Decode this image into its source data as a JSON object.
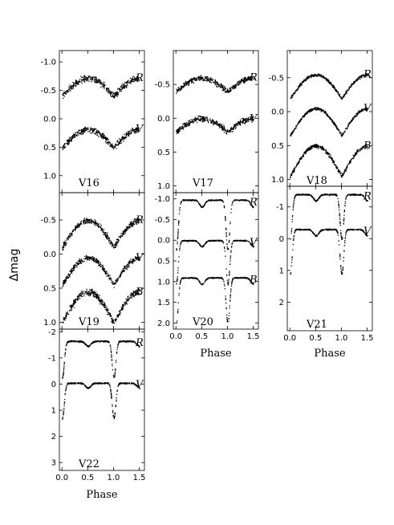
{
  "figure": {
    "ylabel": "Δmag",
    "xlabel": "Phase"
  },
  "chart_data": [
    {
      "type": "scatter",
      "name": "V16",
      "xlim": [
        -0.05,
        1.6
      ],
      "ylim": [
        1.3,
        -1.2
      ],
      "inverted_y": true,
      "yticks": [
        -1.0,
        -0.5,
        0.0,
        0.5,
        1.0
      ],
      "xticks": [],
      "series": [
        {
          "band": "R",
          "offset": -0.72,
          "amp": 0.32,
          "shape": "sinusoid",
          "scatter": 0.08
        },
        {
          "band": "V",
          "offset": 0.18,
          "amp": 0.32,
          "shape": "sinusoid",
          "scatter": 0.08
        }
      ]
    },
    {
      "type": "scatter",
      "name": "V17",
      "xlim": [
        -0.05,
        1.6
      ],
      "ylim": [
        1.1,
        -1.0
      ],
      "inverted_y": true,
      "yticks": [
        -0.5,
        0.0,
        0.5,
        1.0
      ],
      "xticks": [],
      "series": [
        {
          "band": "R",
          "offset": -0.6,
          "amp": 0.2,
          "shape": "sinusoid",
          "scatter": 0.06
        },
        {
          "band": "V",
          "offset": 0.0,
          "amp": 0.2,
          "shape": "sinusoid",
          "scatter": 0.06
        }
      ]
    },
    {
      "type": "scatter",
      "name": "V18",
      "xlim": [
        -0.05,
        1.6
      ],
      "ylim": [
        1.1,
        -0.9
      ],
      "inverted_y": true,
      "yticks": [
        -0.5,
        0.0,
        0.5,
        1.0
      ],
      "xticks": [],
      "series": [
        {
          "band": "R",
          "offset": -0.55,
          "amp": 0.35,
          "shape": "sinusoid",
          "scatter": 0.03
        },
        {
          "band": "V",
          "offset": -0.05,
          "amp": 0.4,
          "shape": "sinusoid",
          "scatter": 0.03
        },
        {
          "band": "B",
          "offset": 0.5,
          "amp": 0.45,
          "shape": "sinusoid",
          "scatter": 0.04
        }
      ]
    },
    {
      "type": "scatter",
      "name": "V19",
      "xlim": [
        -0.05,
        1.6
      ],
      "ylim": [
        1.1,
        -0.9
      ],
      "inverted_y": true,
      "yticks": [
        -0.5,
        0.0,
        0.5,
        1.0
      ],
      "xticks": [],
      "series": [
        {
          "band": "R",
          "offset": -0.5,
          "amp": 0.4,
          "shape": "sinusoid",
          "scatter": 0.06
        },
        {
          "band": "V",
          "offset": 0.05,
          "amp": 0.4,
          "shape": "sinusoid",
          "scatter": 0.06
        },
        {
          "band": "B",
          "offset": 0.55,
          "amp": 0.45,
          "shape": "sinusoid",
          "scatter": 0.07
        }
      ]
    },
    {
      "type": "scatter",
      "name": "V20",
      "xlim": [
        -0.05,
        1.6
      ],
      "ylim": [
        2.15,
        -1.15
      ],
      "inverted_y": true,
      "yticks": [
        -1.0,
        -0.5,
        0.0,
        0.5,
        1.0,
        1.5,
        2.0
      ],
      "xticks": [
        0.0,
        0.5,
        1.0,
        1.5
      ],
      "series": [
        {
          "band": "R",
          "offset": -0.98,
          "amp": 1.2,
          "shape": "eclipsing",
          "scatter": 0.02
        },
        {
          "band": "V",
          "offset": 0.0,
          "amp": 1.05,
          "shape": "eclipsing",
          "scatter": 0.02
        },
        {
          "band": "B",
          "offset": 0.9,
          "amp": 1.1,
          "shape": "eclipsing",
          "scatter": 0.02
        }
      ]
    },
    {
      "type": "scatter",
      "name": "V21",
      "xlim": [
        -0.05,
        1.6
      ],
      "ylim": [
        2.9,
        -1.65
      ],
      "inverted_y": true,
      "yticks": [
        -1,
        0,
        1,
        2
      ],
      "xticks": [
        0.0,
        0.5,
        1.0,
        1.5
      ],
      "series": [
        {
          "band": "R",
          "offset": -1.4,
          "amp": 1.4,
          "shape": "eclipsing",
          "scatter": 0.03
        },
        {
          "band": "V",
          "offset": -0.3,
          "amp": 1.4,
          "shape": "eclipsing",
          "scatter": 0.03
        }
      ]
    },
    {
      "type": "scatter",
      "name": "V22",
      "xlim": [
        -0.05,
        1.6
      ],
      "ylim": [
        3.3,
        -2.1
      ],
      "inverted_y": true,
      "yticks": [
        -2,
        -1,
        0,
        1,
        2,
        3
      ],
      "xticks": [
        0.0,
        0.5,
        1.0,
        1.5
      ],
      "series": [
        {
          "band": "R",
          "offset": -1.65,
          "amp": 1.4,
          "shape": "eclipsing",
          "scatter": 0.04
        },
        {
          "band": "V",
          "offset": -0.05,
          "amp": 1.35,
          "shape": "eclipsing",
          "scatter": 0.04
        }
      ]
    }
  ]
}
